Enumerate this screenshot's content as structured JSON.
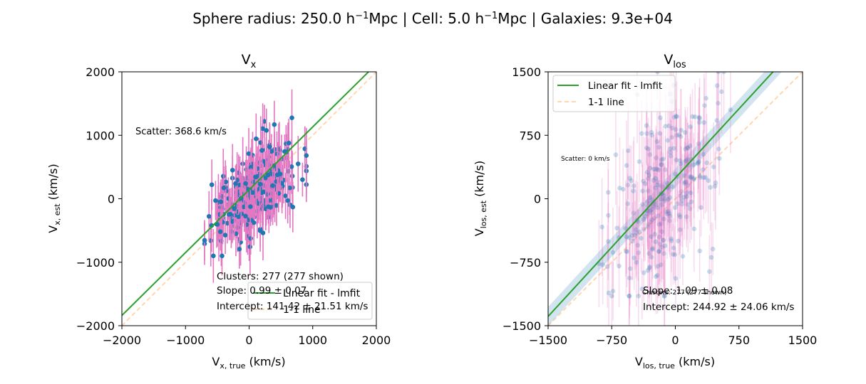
{
  "figure": {
    "suptitle": "Sphere radius: 250.0 h⁻¹Mpc | Cell: 5.0 h⁻¹Mpc | Galaxies: 9.3e+04",
    "suptitle_parts": [
      "Sphere radius: 250.0 h",
      "−1",
      "Mpc | Cell: 5.0 h",
      "−1",
      "Mpc | Galaxies: 9.3e+04"
    ]
  },
  "chart_data": [
    {
      "type": "scatter",
      "title": "Vx",
      "title_main": "V",
      "title_sub": "x",
      "xlabel": "Vx,true (km/s)",
      "xlabel_main": "V",
      "xlabel_sub": "x, true",
      "xlabel_unit": " (km/s)",
      "ylabel": "Vx,est (km/s)",
      "ylabel_main": "V",
      "ylabel_sub": "x, est",
      "ylabel_unit": " (km/s)",
      "xlim": [
        -2000,
        2000
      ],
      "ylim": [
        -2000,
        2000
      ],
      "xticks": [
        -2000,
        -1000,
        0,
        1000,
        2000
      ],
      "yticks": [
        -2000,
        -1000,
        0,
        1000,
        2000
      ],
      "xtick_labels": [
        "−2000",
        "−1000",
        "0",
        "1000",
        "2000"
      ],
      "ytick_labels": [
        "−2000",
        "−1000",
        "0",
        "1000",
        "2000"
      ],
      "grid": false,
      "scatter_text": "Scatter: 368.6 km/s",
      "clusters_text": "Clusters: 277 (277 shown)",
      "slope_text": "Slope: 0.99 ± 0.07",
      "intercept_text": "Intercept: 141.42 ± 21.51 km/s",
      "fit": {
        "slope": 0.99,
        "intercept": 141.42
      },
      "legend_position": "lower-right",
      "legend": [
        "Linear fit - lmfit",
        "1-1 line"
      ],
      "colors": {
        "points": "#1f77b4",
        "errorbars": "#e377c2",
        "fit": "#2ca02c",
        "one_to_one": "#ffbb78"
      },
      "n_points": 277,
      "x_range": [
        -700,
        900
      ],
      "y_range": [
        -900,
        1450
      ],
      "point_alpha": 1.0,
      "error_alpha": 1.0,
      "errorbar_half_length": [
        250,
        450
      ]
    },
    {
      "type": "scatter",
      "title": "Vlos",
      "title_main": "V",
      "title_sub": "los",
      "xlabel": "Vlos,true (km/s)",
      "xlabel_main": "V",
      "xlabel_sub": "los, true",
      "xlabel_unit": " (km/s)",
      "ylabel": "Vlos,est (km/s)",
      "ylabel_main": "V",
      "ylabel_sub": "los, est",
      "ylabel_unit": " (km/s)",
      "xlim": [
        -1500,
        1500
      ],
      "ylim": [
        -1500,
        1500
      ],
      "xticks": [
        -1500,
        -750,
        0,
        750,
        1500
      ],
      "yticks": [
        -1500,
        -750,
        0,
        750,
        1500
      ],
      "xtick_labels": [
        "−1500",
        "−750",
        "0",
        "750",
        "1500"
      ],
      "ytick_labels": [
        "−1500",
        "−750",
        "0",
        "750",
        "1500"
      ],
      "grid": false,
      "scatter_text": "Scatter: 0 km/s",
      "clusters_text": "Clusters: 277 (277 shown)",
      "slope_text": "Slope: 1.09 ± 0.08",
      "intercept_text": "Intercept: 244.92 ± 24.06 km/s",
      "fit": {
        "slope": 1.09,
        "intercept": 244.92
      },
      "legend_position": "upper-left",
      "legend": [
        "Linear fit - lmfit",
        "1-1 line"
      ],
      "colors": {
        "points": "#1f77b4",
        "errorbars": "#e377c2",
        "fit": "#2ca02c",
        "one_to_one": "#ffbb78",
        "band": "#1f77b4"
      },
      "n_points": 277,
      "x_range": [
        -900,
        650
      ],
      "y_range": [
        -1150,
        1500
      ],
      "point_alpha": 0.25,
      "error_alpha": 0.25,
      "errorbar_half_length": [
        300,
        600
      ]
    }
  ]
}
